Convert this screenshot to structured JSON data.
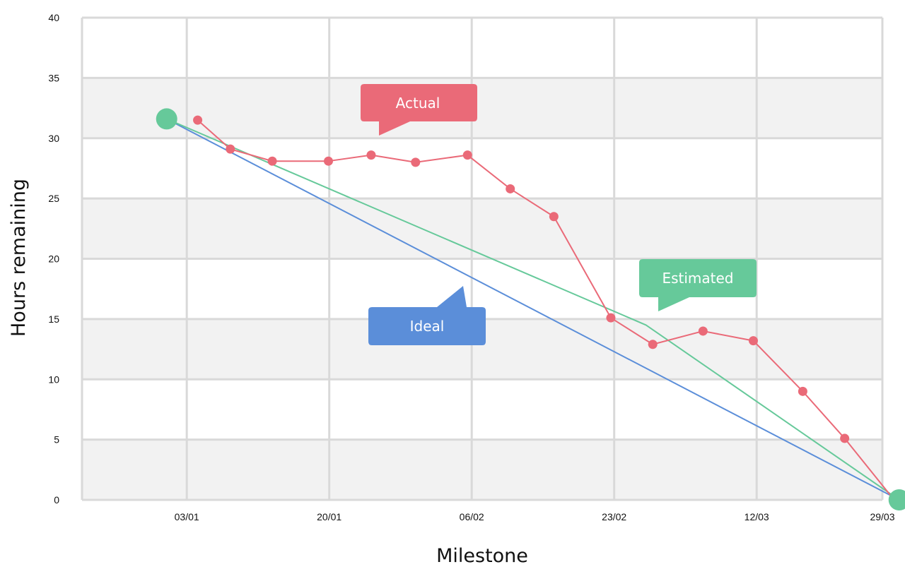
{
  "chart_data": {
    "type": "line",
    "title": "",
    "xlabel": "Milestone",
    "ylabel": "Hours remaining",
    "ylim": [
      0,
      40
    ],
    "yticks": [
      0,
      5,
      10,
      15,
      20,
      25,
      30,
      35,
      40
    ],
    "xlim": [
      -9.5,
      86
    ],
    "xticks": [
      {
        "label": "03/01",
        "day": 3
      },
      {
        "label": "20/01",
        "day": 20
      },
      {
        "label": "06/02",
        "day": 37
      },
      {
        "label": "23/02",
        "day": 54
      },
      {
        "label": "12/03",
        "day": 71
      },
      {
        "label": "29/03",
        "day": 88
      }
    ],
    "grid": true,
    "series": [
      {
        "name": "Ideal",
        "color": "#5b8ed9",
        "points": [
          [
            0.6,
            31.6
          ],
          [
            88,
            0
          ]
        ]
      },
      {
        "name": "Estimated",
        "color": "#66c99a",
        "points": [
          [
            0.6,
            31.6
          ],
          [
            57.8,
            14.5
          ],
          [
            88,
            0
          ]
        ],
        "markers": [
          [
            0.6,
            31.6
          ],
          [
            88,
            0
          ]
        ]
      },
      {
        "name": "Actual",
        "color": "#ea6a78",
        "points": [
          [
            4.3,
            31.5
          ],
          [
            8.2,
            29.1
          ],
          [
            13.2,
            28.1
          ],
          [
            19.9,
            28.1
          ],
          [
            25,
            28.6
          ],
          [
            30.3,
            28
          ],
          [
            36.5,
            28.6
          ],
          [
            41.6,
            25.8
          ],
          [
            46.8,
            23.5
          ],
          [
            53.6,
            15.1
          ],
          [
            58.6,
            12.9
          ],
          [
            64.6,
            14
          ],
          [
            70.6,
            13.2
          ],
          [
            76.5,
            9
          ],
          [
            81.5,
            5.1
          ],
          [
            87.4,
            0
          ]
        ]
      }
    ],
    "callouts": [
      {
        "text": "Actual",
        "color": "#ea6a78"
      },
      {
        "text": "Estimated",
        "color": "#66c99a"
      },
      {
        "text": "Ideal",
        "color": "#5b8ed9"
      }
    ]
  }
}
